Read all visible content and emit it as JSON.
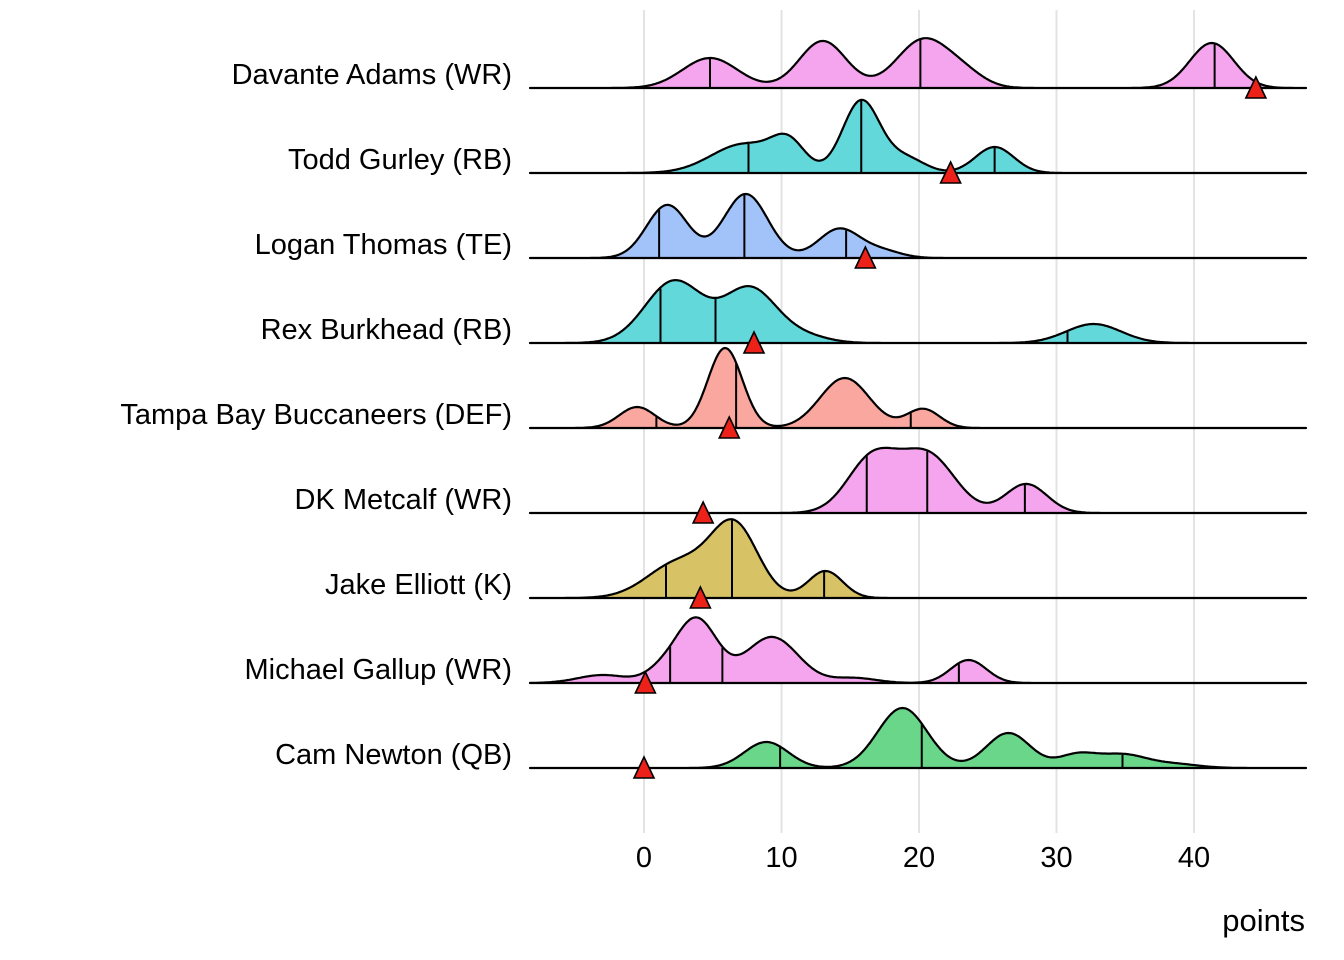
{
  "chart_data": {
    "type": "area",
    "subtype": "ridgeline-density",
    "title": "",
    "xlabel": "points",
    "ylabel": "",
    "x_ticks": [
      0,
      10,
      20,
      30,
      40
    ],
    "xlim": [
      -8.3,
      48.1
    ],
    "grid": "vertical-only",
    "legend": "none",
    "gridline_color": "#e3e3e3",
    "curve_stroke_color": "#000000",
    "marker_color": "#ec2119",
    "marker_shape": "triangle-up",
    "position_colors": {
      "WR": "#f5a5ee",
      "RB": "#63d8db",
      "TE": "#a2c3f9",
      "DEF": "#faa89f",
      "K": "#d8c266",
      "QB": "#69d689"
    },
    "players": [
      {
        "label": "Davante Adams (WR)",
        "position": "WR",
        "color": "#f5a5ee",
        "components": [
          [
            4.8,
            2.0,
            30
          ],
          [
            13.0,
            1.7,
            47
          ],
          [
            20.3,
            1.9,
            48
          ],
          [
            23.3,
            1.5,
            12
          ],
          [
            41.3,
            1.6,
            45
          ]
        ],
        "quantile_lines": [
          4.8,
          20.1,
          41.5
        ],
        "actual_points": 44.5
      },
      {
        "label": "Todd Gurley (RB)",
        "position": "RB",
        "color": "#63d8db",
        "components": [
          [
            7.3,
            2.4,
            29
          ],
          [
            10.5,
            1.2,
            26
          ],
          [
            15.8,
            1.35,
            72
          ],
          [
            19.0,
            1.4,
            15
          ],
          [
            25.5,
            1.4,
            26
          ]
        ],
        "quantile_lines": [
          7.6,
          15.8,
          25.5
        ],
        "actual_points": 22.3
      },
      {
        "label": "Logan Thomas (TE)",
        "position": "TE",
        "color": "#a2c3f9",
        "components": [
          [
            1.7,
            1.5,
            53
          ],
          [
            7.4,
            1.6,
            64
          ],
          [
            14.2,
            1.5,
            29
          ],
          [
            17.3,
            1.4,
            7
          ]
        ],
        "quantile_lines": [
          1.1,
          7.3,
          14.7
        ],
        "actual_points": 16.1
      },
      {
        "label": "Rex Burkhead (RB)",
        "position": "RB",
        "color": "#63d8db",
        "components": [
          [
            2.2,
            2.1,
            62
          ],
          [
            7.7,
            1.9,
            54
          ],
          [
            11.5,
            1.8,
            7
          ],
          [
            32.7,
            2.0,
            19
          ]
        ],
        "quantile_lines": [
          1.2,
          5.2,
          30.8
        ],
        "actual_points": 8.0
      },
      {
        "label": "Tampa Bay Buccaneers (DEF)",
        "position": "DEF",
        "color": "#faa89f",
        "components": [
          [
            -0.5,
            1.3,
            21
          ],
          [
            5.9,
            1.25,
            80
          ],
          [
            14.6,
            1.8,
            50
          ],
          [
            20.3,
            1.2,
            19
          ]
        ],
        "quantile_lines": [
          0.9,
          6.7,
          19.4
        ],
        "actual_points": 6.2
      },
      {
        "label": "DK Metcalf (WR)",
        "position": "WR",
        "color": "#f5a5ee",
        "components": [
          [
            16.6,
            1.8,
            54
          ],
          [
            20.6,
            2.0,
            58
          ],
          [
            27.8,
            1.5,
            29
          ]
        ],
        "quantile_lines": [
          16.2,
          20.6,
          27.7
        ],
        "actual_points": 4.3
      },
      {
        "label": "Jake Elliott (K)",
        "position": "K",
        "color": "#d8c266",
        "components": [
          [
            2.6,
            2.3,
            36
          ],
          [
            6.6,
            1.7,
            70
          ],
          [
            13.2,
            1.25,
            27
          ]
        ],
        "quantile_lines": [
          1.6,
          6.4,
          13.1
        ],
        "actual_points": 4.1
      },
      {
        "label": "Michael Gallup (WR)",
        "position": "WR",
        "color": "#f5a5ee",
        "components": [
          [
            -3.0,
            1.8,
            8
          ],
          [
            1.2,
            1.2,
            10
          ],
          [
            3.8,
            1.5,
            64
          ],
          [
            9.3,
            1.9,
            46
          ],
          [
            15.3,
            1.6,
            5
          ],
          [
            23.6,
            1.3,
            23
          ]
        ],
        "quantile_lines": [
          1.9,
          5.7,
          22.9
        ],
        "actual_points": 0.1
      },
      {
        "label": "Cam Newton (QB)",
        "position": "QB",
        "color": "#69d689",
        "components": [
          [
            8.9,
            1.6,
            26
          ],
          [
            18.8,
            1.8,
            60
          ],
          [
            26.5,
            1.6,
            35
          ],
          [
            31.5,
            1.4,
            13
          ],
          [
            34.8,
            1.7,
            13
          ],
          [
            38.5,
            1.8,
            4
          ]
        ],
        "quantile_lines": [
          9.9,
          20.2,
          34.8
        ],
        "actual_points": 0.0
      }
    ]
  }
}
